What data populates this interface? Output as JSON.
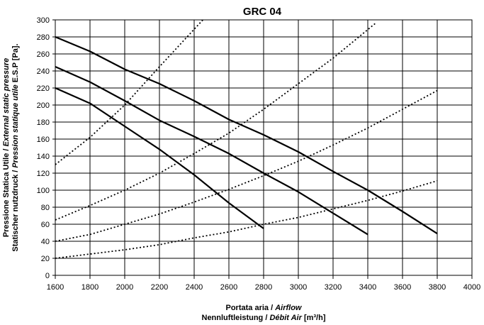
{
  "chart_data": {
    "type": "line",
    "title": "GRC 04",
    "xlabel_line1_plain": "Portata aria / ",
    "xlabel_line1_italic": "Airflow",
    "xlabel_line2_plain": "Nennluftleistung / ",
    "xlabel_line2_italic": "Débit Air",
    "xlabel_line2_unit": "  [m³/h]",
    "ylabel_line1_plain": "Pressione Statica Utile / ",
    "ylabel_line1_italic": "External static pressure",
    "ylabel_line2_plain": "Statischer nutzdruck / ",
    "ylabel_line2_italic": "Pression statique utile",
    "ylabel_line2_unit": " E.S.P [Pa].",
    "xlim": [
      1600,
      4000
    ],
    "ylim": [
      0,
      300
    ],
    "x_ticks": [
      1600,
      1800,
      2000,
      2200,
      2400,
      2600,
      2800,
      3000,
      3200,
      3400,
      3600,
      3800,
      4000
    ],
    "y_ticks": [
      0,
      20,
      40,
      60,
      80,
      100,
      120,
      140,
      160,
      180,
      200,
      220,
      240,
      260,
      280,
      300
    ],
    "grid": true,
    "fan_curves": [
      {
        "x": [
          1600,
          1800,
          2000,
          2200,
          2400,
          2600,
          2800
        ],
        "y": [
          220,
          202,
          175,
          148,
          118,
          85,
          55
        ]
      },
      {
        "x": [
          1600,
          1800,
          2000,
          2200,
          2400,
          2600,
          2800,
          3000,
          3200,
          3400
        ],
        "y": [
          245,
          227,
          205,
          182,
          163,
          143,
          120,
          98,
          73,
          48
        ]
      },
      {
        "x": [
          1600,
          1800,
          2000,
          2200,
          2400,
          2600,
          2800,
          3000,
          3200,
          3400,
          3600,
          3800
        ],
        "y": [
          280,
          263,
          242,
          225,
          205,
          183,
          165,
          145,
          122,
          100,
          75,
          49
        ]
      }
    ],
    "system_curves": [
      {
        "x": [
          1600,
          1800,
          2000,
          2200,
          2450
        ],
        "y": [
          130,
          162,
          200,
          245,
          300
        ]
      },
      {
        "x": [
          1600,
          1800,
          2000,
          2200,
          2400,
          2600,
          2800,
          3000,
          3200,
          3450
        ],
        "y": [
          65,
          82,
          100,
          120,
          143,
          167,
          195,
          225,
          255,
          297
        ]
      },
      {
        "x": [
          1600,
          1800,
          2000,
          2200,
          2400,
          2600,
          2800,
          3000,
          3200,
          3400,
          3600,
          3800
        ],
        "y": [
          40,
          48,
          60,
          72,
          86,
          101,
          117,
          134,
          153,
          173,
          195,
          217
        ]
      },
      {
        "x": [
          1600,
          1800,
          2000,
          2200,
          2400,
          2600,
          2800,
          3000,
          3200,
          3400,
          3600,
          3800
        ],
        "y": [
          20,
          25,
          30,
          36,
          44,
          51,
          60,
          68,
          78,
          88,
          99,
          111
        ]
      }
    ]
  }
}
